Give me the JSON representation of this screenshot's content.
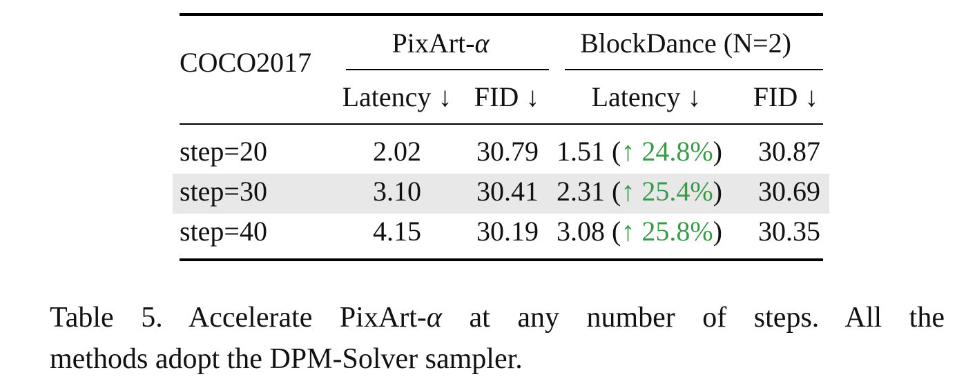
{
  "table": {
    "corner_label": "COCO2017",
    "group_pixart_prefix": "PixArt-",
    "group_pixart_symbol": "α",
    "group_blockdance": "BlockDance (N=2)",
    "sub_latency": "Latency ↓",
    "sub_fid": "FID ↓",
    "rows": [
      {
        "step": "step=20",
        "px_latency": "2.02",
        "px_fid": "30.79",
        "bd_latency": "1.51",
        "bd_gain": "↑ 24.8%",
        "bd_fid": "30.87",
        "shaded": false
      },
      {
        "step": "step=30",
        "px_latency": "3.10",
        "px_fid": "30.41",
        "bd_latency": "2.31",
        "bd_gain": "↑ 25.4%",
        "bd_fid": "30.69",
        "shaded": true
      },
      {
        "step": "step=40",
        "px_latency": "4.15",
        "px_fid": "30.19",
        "bd_latency": "3.08",
        "bd_gain": "↑ 25.8%",
        "bd_fid": "30.35",
        "shaded": false
      }
    ],
    "highlight_color": "#3a9a4a",
    "shade_color": "#e8e8e8"
  },
  "caption": {
    "line1_prefix": "Table 5.  Accelerate PixArt-",
    "line1_symbol": "α",
    "line1_suffix": " at any number of steps.  All the",
    "line2": "methods adopt the DPM-Solver sampler."
  }
}
